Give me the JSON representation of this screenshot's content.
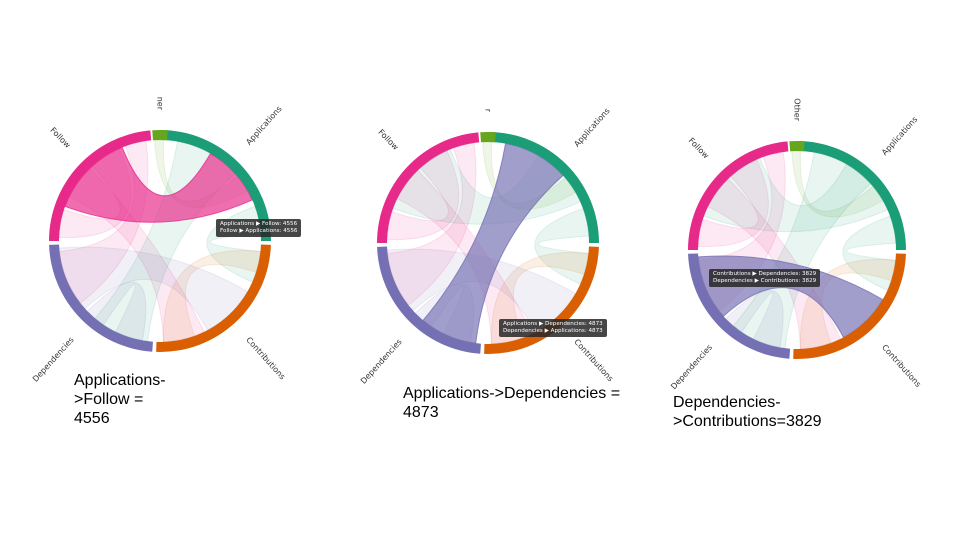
{
  "colors": {
    "Applications": "#1b9e77",
    "Contributions": "#d95f02",
    "Dependencies": "#7570b3",
    "Follow": "#e7298a",
    "Other": "#66a61e"
  },
  "panels": [
    {
      "arc_labels": [
        "Applications",
        "Contributions",
        "Dependencies",
        "Follow",
        "ner"
      ],
      "highlight": [
        "Applications",
        "Follow"
      ],
      "tooltip": [
        "Applications ▶ Follow: 4556",
        "Follow ▶ Applications: 4556"
      ],
      "caption": "Applications->Follow = 4556"
    },
    {
      "arc_labels": [
        "Applications",
        "Contributions",
        "Dependencies",
        "Follow",
        "r"
      ],
      "highlight": [
        "Applications",
        "Dependencies"
      ],
      "tooltip": [
        "Applications ▶ Dependencies: 4873",
        "Dependencies ▶ Applications: 4873"
      ],
      "caption": "Applications->Dependencies = 4873"
    },
    {
      "arc_labels": [
        "Applications",
        "Contributions",
        "Dependencies",
        "Follow",
        "Other"
      ],
      "highlight": [
        "Dependencies",
        "Contributions"
      ],
      "tooltip": [
        "Contributions ▶ Dependencies: 3829",
        "Dependencies ▶ Contributions: 3829"
      ],
      "caption": "Dependencies->Contributions=3829"
    }
  ]
}
